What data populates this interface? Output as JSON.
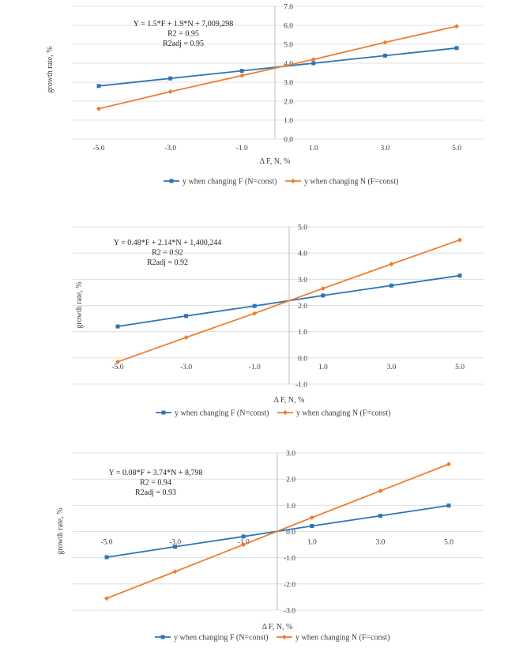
{
  "chart_data": [
    {
      "type": "line",
      "x": [
        -5.0,
        -3.0,
        -1.0,
        1.0,
        3.0,
        5.0
      ],
      "xtick_labels": [
        "-5.0",
        "-3.0",
        "-1.0",
        "1.0",
        "3.0",
        "5.0"
      ],
      "ylim": [
        0,
        7
      ],
      "ytick_labels": [
        "0.0",
        "1.0",
        "2.0",
        "3.0",
        "4.0",
        "5.0",
        "6.0",
        "7.0"
      ],
      "xlabel": "Δ F, N, %",
      "ylabel": "growth rate, %",
      "annotation": [
        "Y = 1.5*F + 1.9*N + 7,009,298",
        "R2 = 0.95",
        "R2adj = 0.95"
      ],
      "series": [
        {
          "name": "y when changing F (N=const)",
          "color": "#2E75B6",
          "values": [
            2.8,
            3.2,
            3.6,
            4.0,
            4.4,
            4.8
          ]
        },
        {
          "name": "y when changing N (F=const)",
          "color": "#ED7D31",
          "values": [
            1.6,
            2.5,
            3.35,
            4.2,
            5.1,
            5.95
          ]
        }
      ]
    },
    {
      "type": "line",
      "x": [
        -5.0,
        -3.0,
        -1.0,
        1.0,
        3.0,
        5.0
      ],
      "xtick_labels": [
        "-5.0",
        "-3.0",
        "-1.0",
        "1.0",
        "3.0",
        "5.0"
      ],
      "ylim": [
        -1,
        5
      ],
      "ytick_labels": [
        "-1.0",
        "0.0",
        "1.0",
        "2.0",
        "3.0",
        "4.0",
        "5.0"
      ],
      "xlabel": "Δ F, N, %",
      "ylabel": "growth rate, %",
      "annotation": [
        "Y = 0.48*F + 2.14*N + 1,400,244",
        "R2 = 0.92",
        "R2adj = 0.92"
      ],
      "series": [
        {
          "name": "y when changing F (N=const)",
          "color": "#2E75B6",
          "values": [
            1.2,
            1.6,
            1.98,
            2.38,
            2.76,
            3.14
          ]
        },
        {
          "name": "y when changing N (F=const)",
          "color": "#ED7D31",
          "values": [
            -0.15,
            0.78,
            1.7,
            2.65,
            3.58,
            4.5
          ]
        }
      ]
    },
    {
      "type": "line",
      "x": [
        -5.0,
        -3.0,
        -1.0,
        1.0,
        3.0,
        5.0
      ],
      "xtick_labels": [
        "-5.0",
        "-3.0",
        "-1.0",
        "1.0",
        "3.0",
        "5.0"
      ],
      "ylim": [
        -3,
        3
      ],
      "ytick_labels": [
        "-3.0",
        "-2.0",
        "-1.0",
        "0.0",
        "1.0",
        "2.0",
        "3.0"
      ],
      "xlabel": "Δ F, N, %",
      "ylabel": "growth rate, %",
      "annotation": [
        "Y = 0.08*F + 3.74*N + 8,798",
        "R2 = 0.94",
        "R2adj = 0.93"
      ],
      "series": [
        {
          "name": "y when changing F (N=const)",
          "color": "#2E75B6",
          "values": [
            -0.98,
            -0.58,
            -0.19,
            0.21,
            0.6,
            0.99
          ]
        },
        {
          "name": "y when changing N (F=const)",
          "color": "#ED7D31",
          "values": [
            -2.55,
            -1.53,
            -0.5,
            0.53,
            1.55,
            2.57
          ]
        }
      ]
    }
  ]
}
